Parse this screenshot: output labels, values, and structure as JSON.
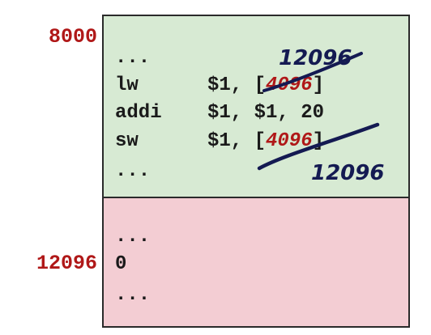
{
  "addresses": {
    "top": "8000",
    "bottom": "12096"
  },
  "code_segment": {
    "lines": [
      {
        "op": "...",
        "args": ""
      },
      {
        "op": "lw",
        "args_before": "$1, [",
        "old_addr": "4096",
        "args_after": "]"
      },
      {
        "op": "addi",
        "args": "$1, $1, 20"
      },
      {
        "op": "sw",
        "args_before": "$1, [",
        "old_addr": "4096",
        "args_after": "]"
      },
      {
        "op": "...",
        "args": ""
      }
    ]
  },
  "data_segment": {
    "lines": [
      "...",
      "0",
      "..."
    ]
  },
  "annotations": {
    "lw_new_addr": "12096",
    "sw_new_addr": "12096",
    "ink_color": "#141a52",
    "old_addr_color": "#b01818"
  }
}
